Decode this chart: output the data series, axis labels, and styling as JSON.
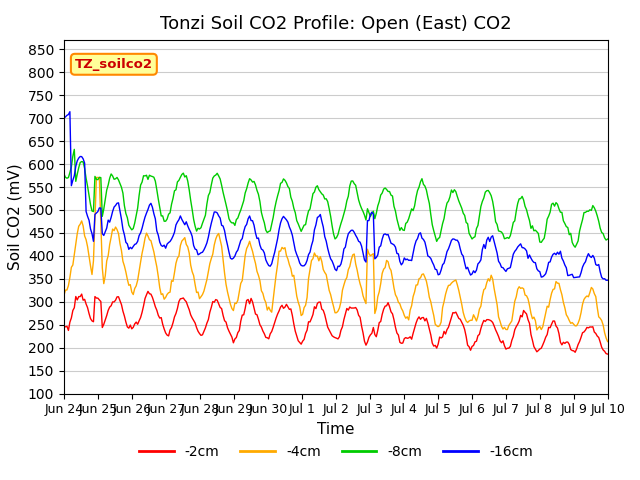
{
  "title": "Tonzi Soil CO2 Profile: Open (East) CO2",
  "ylabel": "Soil CO2 (mV)",
  "xlabel": "Time",
  "ylim": [
    100,
    870
  ],
  "yticks": [
    100,
    150,
    200,
    250,
    300,
    350,
    400,
    450,
    500,
    550,
    600,
    650,
    700,
    750,
    800,
    850
  ],
  "legend_label": "TZ_soilco2",
  "series_labels": [
    "-2cm",
    "-4cm",
    "-8cm",
    "-16cm"
  ],
  "series_colors": [
    "#ff0000",
    "#ffaa00",
    "#00cc00",
    "#0000ff"
  ],
  "background_color": "#ffffff",
  "grid_color": "#cccccc",
  "title_fontsize": 13,
  "axis_fontsize": 11,
  "tick_fontsize": 10,
  "n_points": 370
}
